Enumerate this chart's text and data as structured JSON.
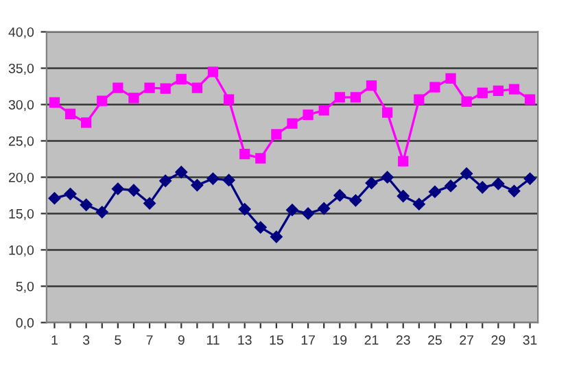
{
  "chart_data": {
    "type": "line",
    "categories": [
      "1",
      null,
      "3",
      null,
      "5",
      null,
      "7",
      null,
      "9",
      null,
      "11",
      null,
      "13",
      null,
      "15",
      null,
      "17",
      null,
      "19",
      null,
      "21",
      null,
      "23",
      null,
      "25",
      null,
      "27",
      null,
      "29",
      null,
      "31"
    ],
    "series": [
      {
        "color": "#ff00ff",
        "marker": "square",
        "values": [
          30.3,
          28.7,
          27.5,
          30.5,
          32.3,
          30.9,
          32.3,
          32.2,
          33.5,
          32.3,
          34.5,
          30.7,
          23.2,
          22.6,
          25.9,
          27.4,
          28.6,
          29.2,
          31.0,
          31.0,
          32.6,
          28.9,
          22.2,
          30.7,
          32.4,
          33.6,
          30.4,
          31.6,
          31.9,
          32.1,
          30.7
        ]
      },
      {
        "color": "#000080",
        "marker": "diamond",
        "values": [
          17.1,
          17.7,
          16.2,
          15.2,
          18.4,
          18.2,
          16.4,
          19.5,
          20.7,
          18.9,
          19.8,
          19.6,
          15.6,
          13.1,
          11.8,
          15.5,
          15.0,
          15.7,
          17.5,
          16.8,
          19.2,
          20.0,
          17.4,
          16.3,
          18.0,
          18.8,
          20.5,
          18.6,
          19.1,
          18.1,
          19.8
        ]
      }
    ],
    "ylim": [
      0,
      40
    ],
    "yticks": [
      {
        "value": 0,
        "label": "0,0"
      },
      {
        "value": 5,
        "label": "5,0"
      },
      {
        "value": 10,
        "label": "10,0"
      },
      {
        "value": 15,
        "label": "15,0"
      },
      {
        "value": 20,
        "label": "20,0"
      },
      {
        "value": 25,
        "label": "25,0"
      },
      {
        "value": 30,
        "label": "30,0"
      },
      {
        "value": 35,
        "label": "35,0"
      },
      {
        "value": 40,
        "label": "40,0"
      }
    ],
    "grid": "y"
  }
}
